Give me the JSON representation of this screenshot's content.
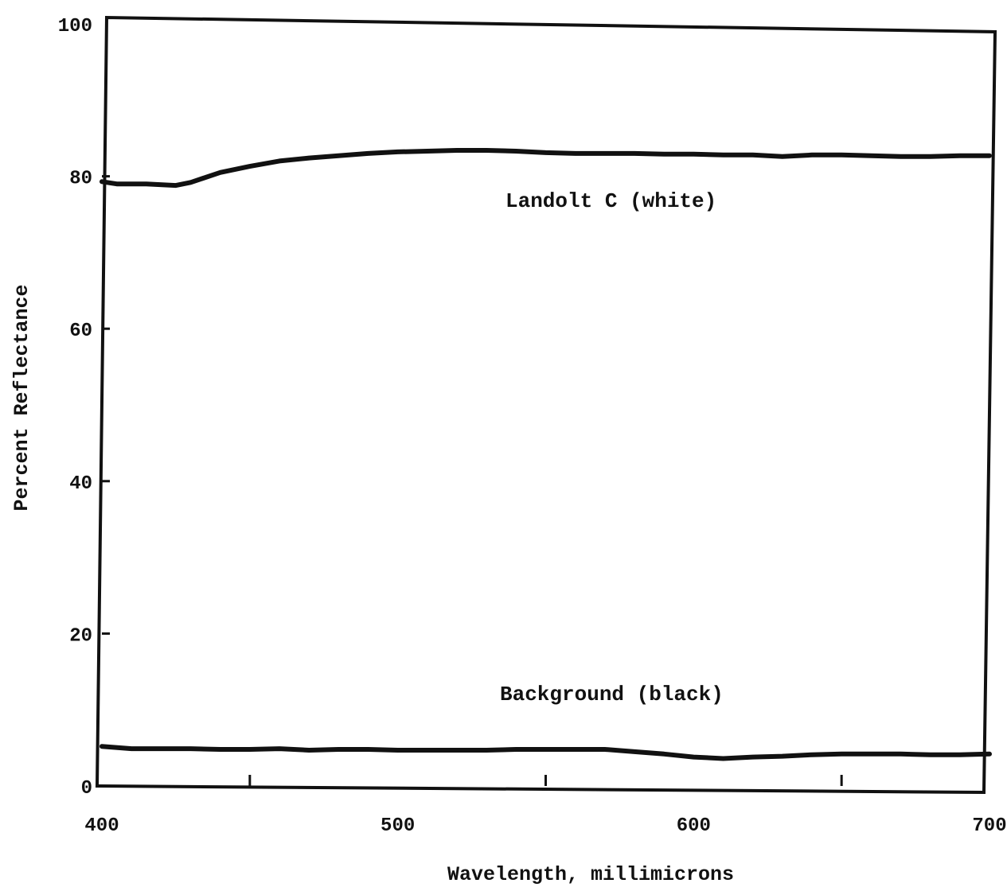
{
  "chart_data": {
    "type": "line",
    "xlabel": "Wavelength, millimicrons",
    "ylabel": "Percent Reflectance",
    "xlim": [
      400,
      700
    ],
    "ylim": [
      0,
      100
    ],
    "x_ticks": [
      400,
      500,
      600,
      700
    ],
    "x_tick_labels": [
      "400",
      "500",
      "600",
      "700"
    ],
    "x_minor_ticks": [
      450,
      550,
      650
    ],
    "y_ticks": [
      0,
      20,
      40,
      60,
      80,
      100
    ],
    "y_tick_labels": [
      "0",
      "20",
      "40",
      "60",
      "80",
      "100"
    ],
    "grid": false,
    "series": [
      {
        "name": "Landolt C (white)",
        "x": [
          400,
          405,
          415,
          425,
          430,
          440,
          450,
          460,
          470,
          480,
          490,
          500,
          510,
          520,
          530,
          540,
          550,
          560,
          570,
          580,
          590,
          600,
          610,
          620,
          630,
          640,
          650,
          660,
          670,
          680,
          690,
          700
        ],
        "values": [
          79.3,
          79.0,
          79.0,
          78.8,
          79.2,
          80.5,
          81.3,
          82.0,
          82.4,
          82.7,
          83.0,
          83.2,
          83.3,
          83.4,
          83.4,
          83.3,
          83.1,
          83.0,
          83.0,
          83.0,
          82.9,
          82.9,
          82.8,
          82.8,
          82.6,
          82.8,
          82.8,
          82.7,
          82.6,
          82.6,
          82.7,
          82.7
        ]
      },
      {
        "name": "Background (black)",
        "x": [
          400,
          410,
          420,
          430,
          440,
          450,
          460,
          470,
          480,
          490,
          500,
          510,
          520,
          530,
          540,
          550,
          560,
          570,
          580,
          590,
          600,
          610,
          620,
          630,
          640,
          650,
          660,
          670,
          680,
          690,
          700
        ],
        "values": [
          5.2,
          4.9,
          4.9,
          4.9,
          4.8,
          4.8,
          4.9,
          4.7,
          4.8,
          4.8,
          4.7,
          4.7,
          4.7,
          4.7,
          4.8,
          4.8,
          4.8,
          4.8,
          4.5,
          4.2,
          3.8,
          3.6,
          3.8,
          3.9,
          4.1,
          4.2,
          4.2,
          4.2,
          4.1,
          4.1,
          4.2
        ]
      }
    ]
  }
}
